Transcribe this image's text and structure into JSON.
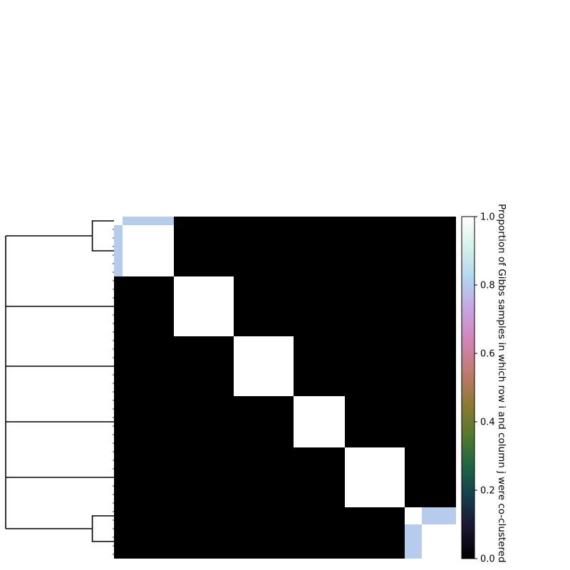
{
  "chart_data": {
    "type": "heatmap",
    "title": "",
    "xlabel": "",
    "ylabel": "",
    "n": 40,
    "blocks": [
      {
        "rows": [
          0,
          0
        ],
        "value": 1.0
      },
      {
        "rows": [
          1,
          6
        ],
        "value": 1.0
      },
      {
        "rows": [
          7,
          13
        ],
        "value": 1.0
      },
      {
        "rows": [
          14,
          20
        ],
        "value": 1.0
      },
      {
        "rows": [
          21,
          26
        ],
        "value": 1.0
      },
      {
        "rows": [
          27,
          33
        ],
        "value": 1.0
      },
      {
        "rows": [
          34,
          35
        ],
        "value": 1.0
      },
      {
        "rows": [
          36,
          39
        ],
        "value": 1.0
      }
    ],
    "partial_links": [
      {
        "a": [
          0,
          0
        ],
        "b": [
          1,
          6
        ],
        "value": 0.8
      },
      {
        "a": [
          34,
          35
        ],
        "b": [
          36,
          39
        ],
        "value": 0.8
      }
    ],
    "background_value": 0.0,
    "dendrogram": {
      "side": "left",
      "leaves": 8,
      "merges": [
        {
          "left": 0,
          "right": 1,
          "height": 0.2
        },
        {
          "left": 6,
          "right": 7,
          "height": 0.2
        }
      ],
      "top_height": 1.0
    },
    "colorbar": {
      "label": "Proportion of Gibbs samples in which row i and column j were co-clustered",
      "range": [
        0.0,
        1.0
      ],
      "ticks": [
        "0.0",
        "0.2",
        "0.4",
        "0.6",
        "0.8",
        "1.0"
      ],
      "colormap": "cubehelix",
      "colors": [
        "#000000",
        "#1a1530",
        "#163d4e",
        "#1f6642",
        "#54792f",
        "#8e7b34",
        "#c17a6f",
        "#d285b4",
        "#c9a3e2",
        "#b0d6f0",
        "#d4f0ea",
        "#ffffff"
      ]
    }
  }
}
